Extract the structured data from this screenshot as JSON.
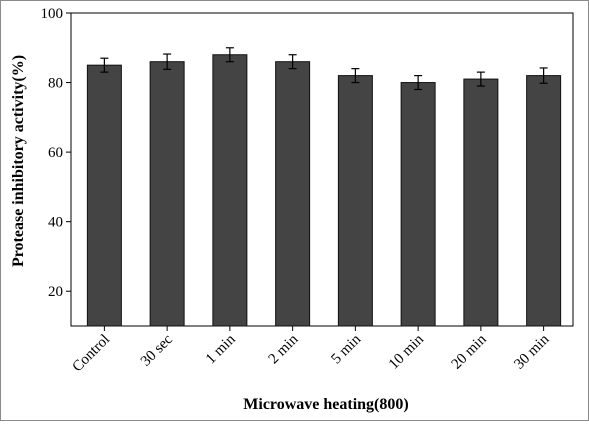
{
  "chart_data": {
    "type": "bar",
    "title": "",
    "xlabel": "Microwave heating(800)",
    "ylabel": "Protease inhibitory activity(%)",
    "categories": [
      "Control",
      "30 sec",
      "1 min",
      "2 min",
      "5 min",
      "10 min",
      "20 min",
      "30 min"
    ],
    "values": [
      85,
      86,
      88,
      86,
      82,
      80,
      81,
      82
    ],
    "errors": [
      2,
      2.2,
      2,
      2,
      2,
      2,
      2,
      2.2
    ],
    "ylim": [
      10,
      100
    ],
    "yticks": [
      20,
      40,
      60,
      80,
      100
    ],
    "grid": false,
    "colors": {
      "bar": "#444444",
      "bar_edge": "#111111",
      "axis": "#000000"
    }
  }
}
